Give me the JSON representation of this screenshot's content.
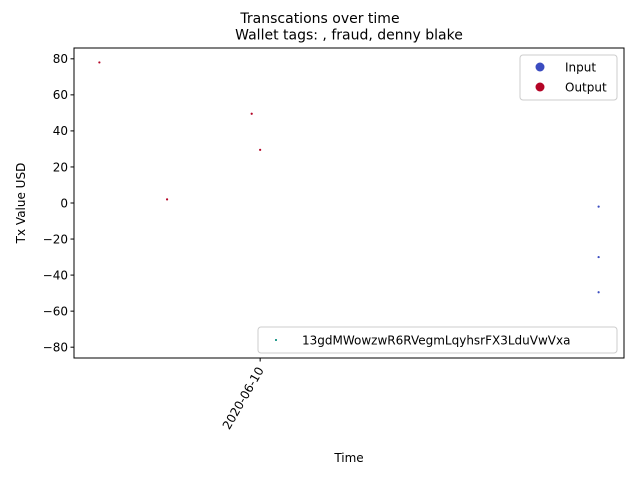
{
  "chart_data": {
    "type": "scatter",
    "suptitle": "Transcations over time",
    "title": "Wallet tags: , fraud, denny blake",
    "xlabel": "Time",
    "ylabel": "Tx Value USD",
    "xlim": [
      "2020-05-19",
      "2020-07-23"
    ],
    "ylim": [
      -86,
      86
    ],
    "yticks": [
      80,
      60,
      40,
      20,
      0,
      -20,
      -40,
      -60,
      -80
    ],
    "xticks": [
      "2020-06-10"
    ],
    "grid": false,
    "series": [
      {
        "name": "Input",
        "color": "#3b4cc0",
        "points": [
          {
            "x": "2020-07-20",
            "y": -2
          },
          {
            "x": "2020-07-20",
            "y": -30
          },
          {
            "x": "2020-07-20",
            "y": -49.5
          }
        ]
      },
      {
        "name": "Output",
        "color": "#b40426",
        "points": [
          {
            "x": "2020-05-22",
            "y": 78
          },
          {
            "x": "2020-05-30",
            "y": 2
          },
          {
            "x": "2020-06-09",
            "y": 49.5
          },
          {
            "x": "2020-06-10",
            "y": 29.5
          }
        ]
      }
    ],
    "legend_upper": {
      "placement": "top-right",
      "entries": [
        "Input",
        "Output"
      ]
    },
    "legend_lower": {
      "placement": "bottom-right",
      "entry": "13gdMWowzwR6RVegmLqyhsrFX3LduVwVxa",
      "color": "#2a9d8f"
    }
  }
}
